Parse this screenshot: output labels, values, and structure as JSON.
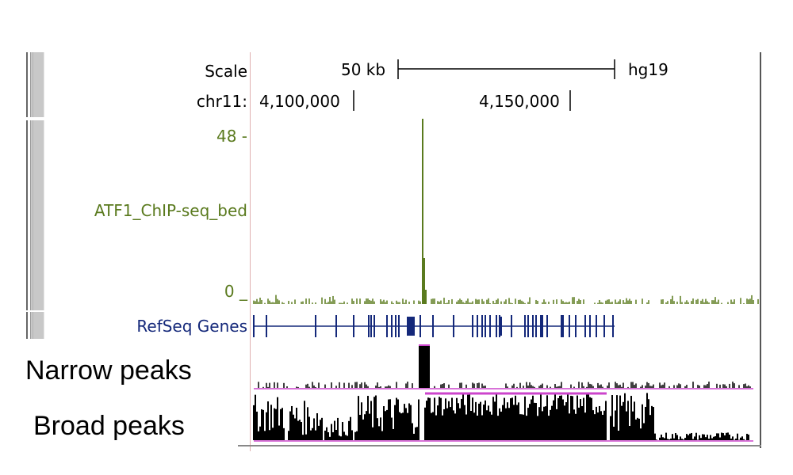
{
  "header": {
    "scale_label": "Scale",
    "scale_value": "50 kb",
    "assembly": "hg19",
    "chrom_label": "chr11:",
    "pos1": "4,100,000",
    "pos2": "4,150,000"
  },
  "tracks": {
    "atf1": {
      "label": "ATF1_ChIP-seq_bed",
      "max_label": "48 -",
      "min_label": "0 _",
      "color": "#5a7a1e",
      "peak_fraction": 1.0
    },
    "refseq": {
      "label": "RefSeq Genes",
      "color": "#14287a"
    },
    "narrow": {
      "label": "Narrow peaks"
    },
    "broad": {
      "label": "Broad peaks"
    }
  },
  "colors": {
    "track_border": "#e0a0a0",
    "coverage": "#000000",
    "baseline_magenta": "#cc44cc"
  }
}
